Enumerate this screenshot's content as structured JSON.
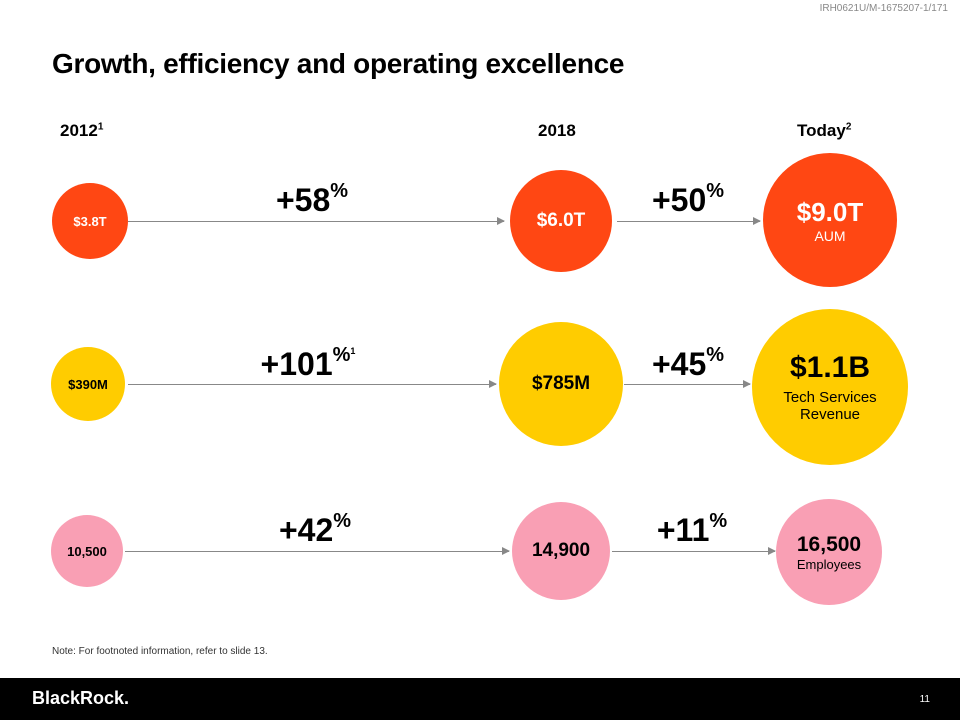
{
  "doc_id": "IRH0621U/M-1675207-1/171",
  "title": "Growth, efficiency and operating excellence",
  "columns": {
    "c2012": "2012",
    "c2012_fn": "1",
    "c2018": "2018",
    "today": "Today",
    "today_fn": "2"
  },
  "rows": [
    {
      "start": "$3.8T",
      "growth1": "+58",
      "growth1_fn": "",
      "mid": "$6.0T",
      "growth2": "+50",
      "end": "$9.0T",
      "end_label": "AUM"
    },
    {
      "start": "$390M",
      "growth1": "+101",
      "growth1_fn": "1",
      "mid": "$785M",
      "growth2": "+45",
      "end": "$1.1B",
      "end_label": "Tech Services Revenue"
    },
    {
      "start": "10,500",
      "growth1": "+42",
      "growth1_fn": "",
      "mid": "14,900",
      "growth2": "+11",
      "end": "16,500",
      "end_label": "Employees"
    }
  ],
  "percent_sign": "%",
  "note": "Note: For footnoted information, refer to slide 13.",
  "footer": {
    "logo": "BlackRock.",
    "page": "11"
  },
  "colors": {
    "orange": "#ff4713",
    "yellow": "#ffcc00",
    "pink": "#f99fb4"
  }
}
